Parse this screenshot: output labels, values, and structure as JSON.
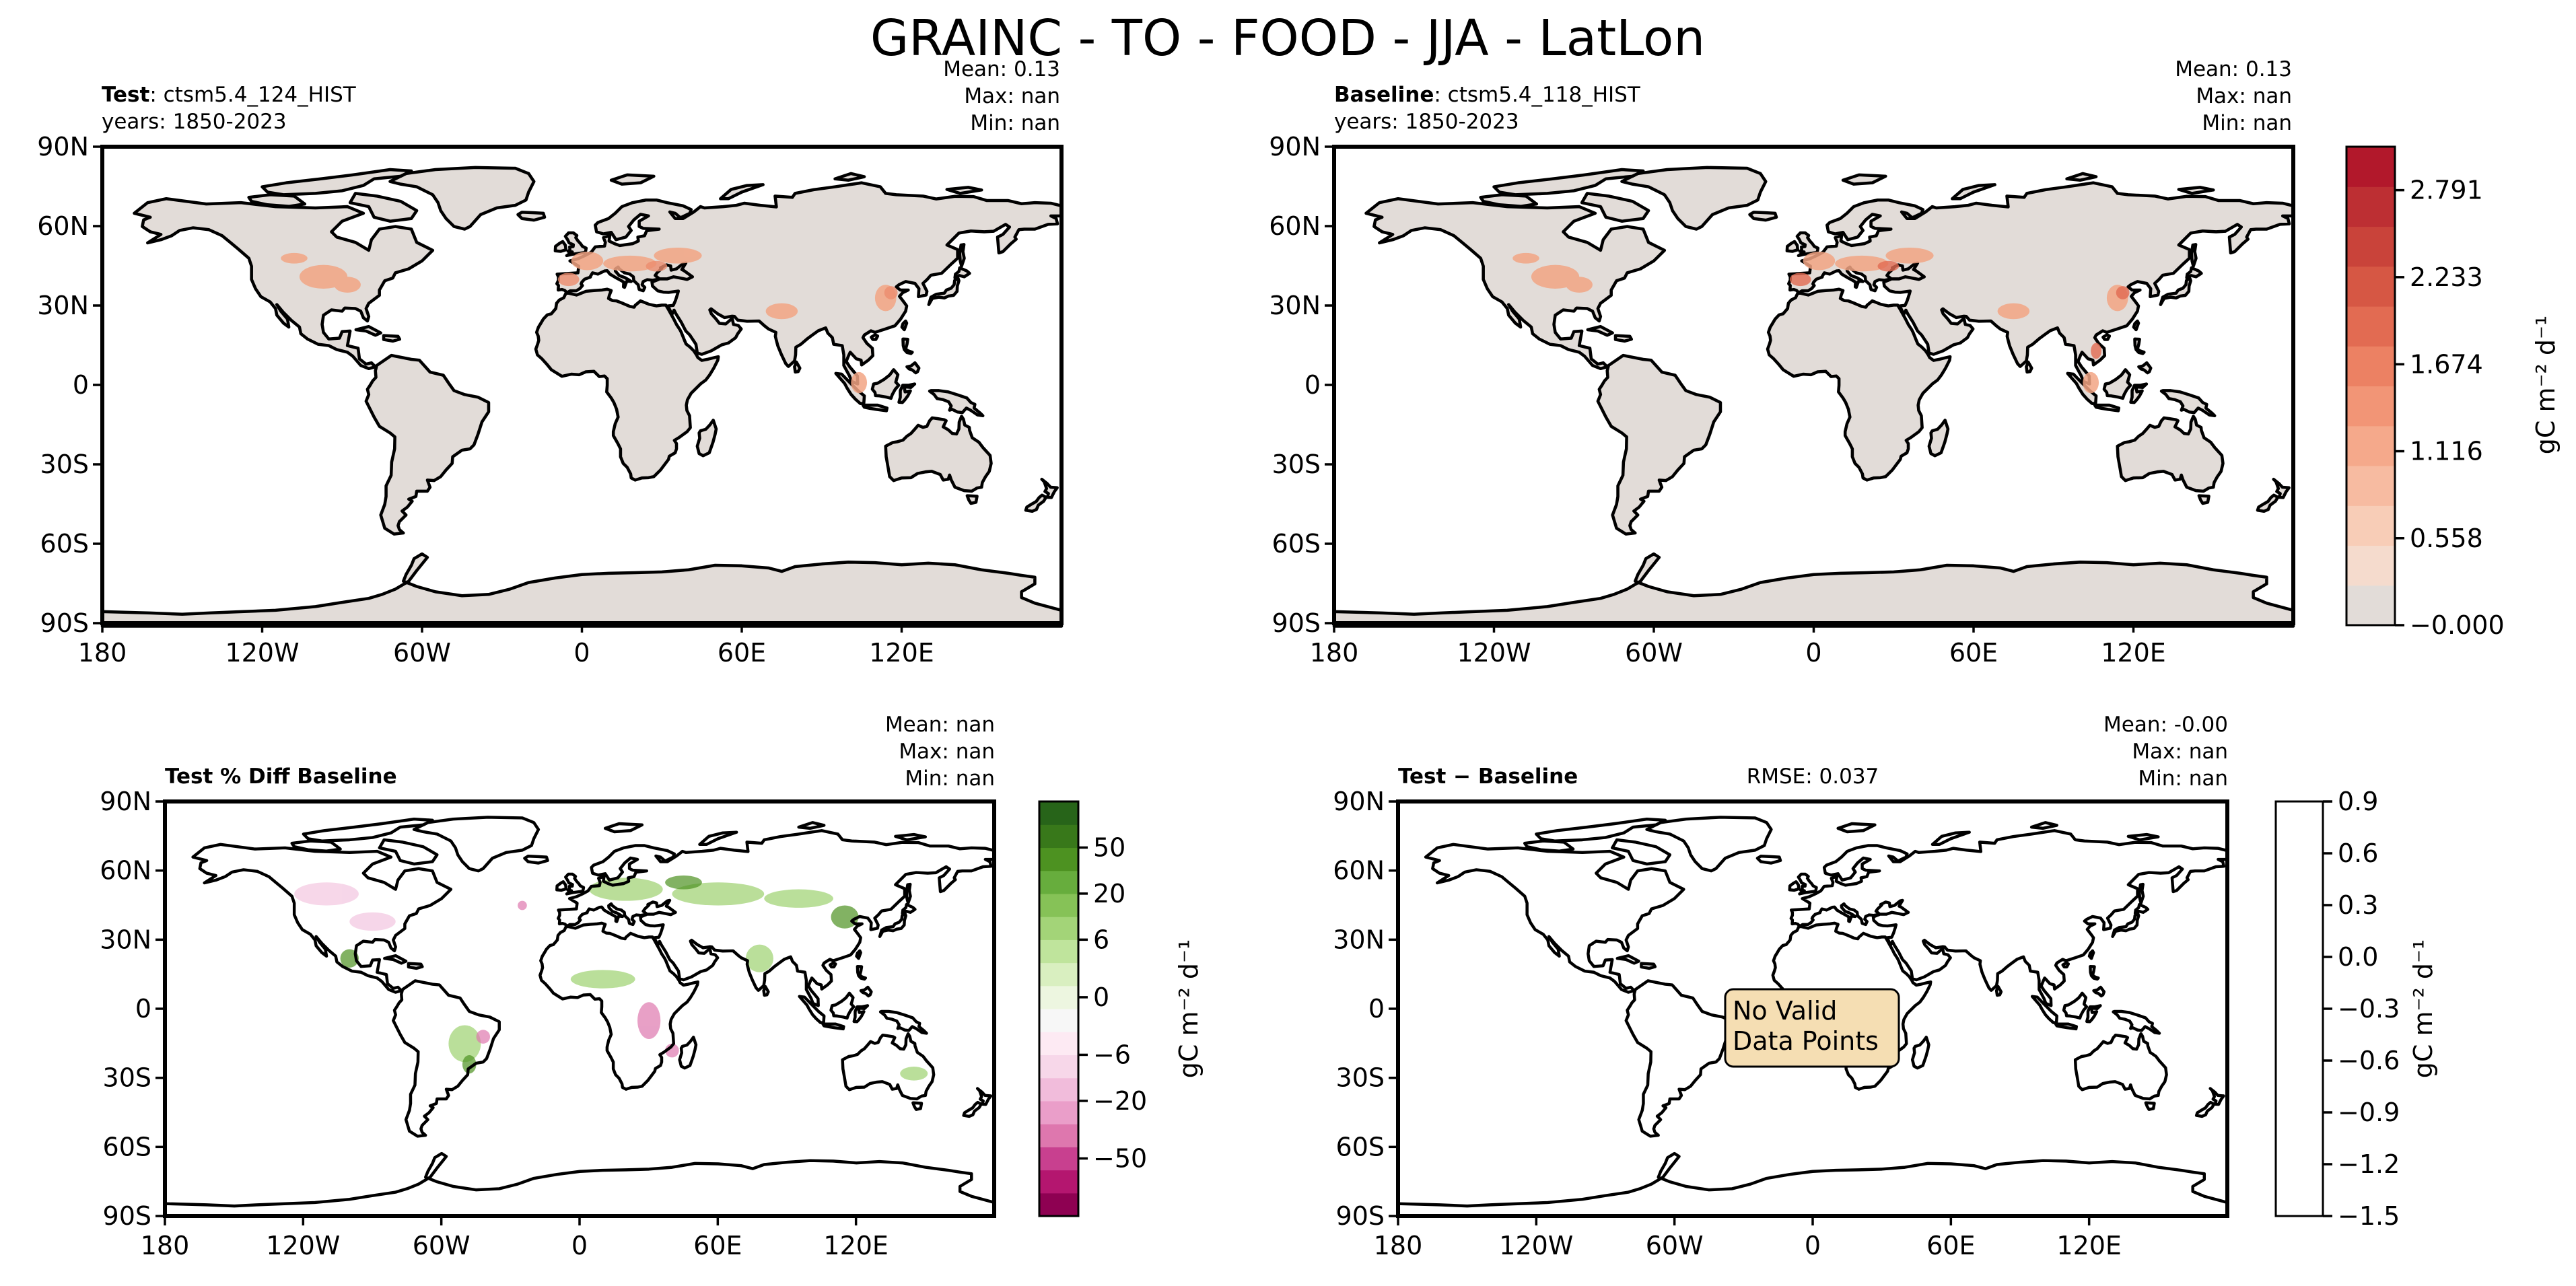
{
  "chart_data": {
    "type": "map",
    "suptitle": "GRAINC - TO - FOOD - JJA - LatLon",
    "lat_ticks": [
      "90N",
      "60N",
      "30N",
      "0",
      "30S",
      "60S",
      "90S"
    ],
    "lon_ticks": [
      "180",
      "120W",
      "60W",
      "0",
      "60E",
      "120E"
    ],
    "panels": [
      {
        "id": "test",
        "label_bold": "Test",
        "label_rest": ": ctsm5.4_124_HIST",
        "years": "years: 1850-2023",
        "stats": {
          "mean": "Mean:  0.13",
          "max": "Max:   nan",
          "min": "Min:   nan"
        },
        "rmse": "",
        "note": ""
      },
      {
        "id": "baseline",
        "label_bold": "Baseline",
        "label_rest": ": ctsm5.4_118_HIST",
        "years": "years: 1850-2023",
        "stats": {
          "mean": "Mean:  0.13",
          "max": "Max:   nan",
          "min": "Min:   nan"
        },
        "rmse": "",
        "note": ""
      },
      {
        "id": "pctdiff",
        "label_bold": "Test % Diff Baseline",
        "label_rest": "",
        "years": "",
        "stats": {
          "mean": "Mean:   nan",
          "max": "Max:   nan",
          "min": "Min:   nan"
        },
        "rmse": "",
        "note": ""
      },
      {
        "id": "diff",
        "label_bold": "Test − Baseline",
        "label_rest": "",
        "years": "",
        "stats": {
          "mean": "Mean: -0.00",
          "max": "Max:   nan",
          "min": "Min:   nan"
        },
        "rmse": "RMSE: 0.037",
        "note_line1": "No Valid",
        "note_line2": "Data Points"
      }
    ],
    "colorbars": [
      {
        "id": "abs",
        "units": "gC m⁻² d⁻¹",
        "ticks": [
          "2.791",
          "2.233",
          "1.674",
          "1.116",
          "0.558",
          "−0.000"
        ],
        "range": [
          -0.0,
          3.07
        ],
        "colors": [
          "#e2dcd8",
          "#f5dbcd",
          "#f8cdb7",
          "#f7bba1",
          "#f5a98b",
          "#f29576",
          "#ec8163",
          "#e26b52",
          "#d65744",
          "#c9433a",
          "#bd2f33",
          "#b2182b"
        ]
      },
      {
        "id": "pct",
        "units": "gC m⁻² d⁻¹",
        "ticks": [
          "50",
          "20",
          "6",
          "0",
          "−6",
          "−20",
          "−50"
        ],
        "colors": [
          "#8e0152",
          "#b4166f",
          "#c8408f",
          "#de77ae",
          "#ea9ec9",
          "#f1bcdb",
          "#f7d7e9",
          "#fdeaf3",
          "#f7f7f7",
          "#edf6e0",
          "#d9efc0",
          "#bfe49c",
          "#a3d478",
          "#86c257",
          "#67ad3d",
          "#4d9221",
          "#38781a",
          "#276419"
        ]
      },
      {
        "id": "diff",
        "units": "gC m⁻² d⁻¹",
        "ticks": [
          "0.9",
          "0.6",
          "0.3",
          "0.0",
          "−0.3",
          "−0.6",
          "−0.9",
          "−1.2",
          "−1.5"
        ],
        "colors": [
          "#ffffff"
        ]
      }
    ]
  }
}
